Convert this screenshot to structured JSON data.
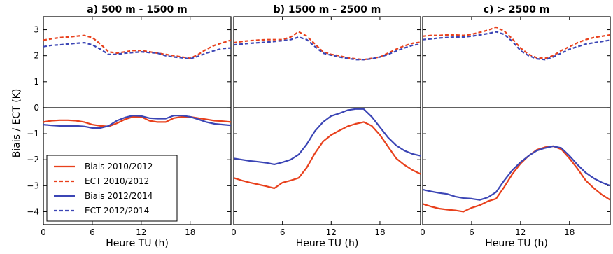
{
  "figure": {
    "ylabel": "Biais / ECT (K)",
    "xlabel": "Heure TU (h)"
  },
  "colors": {
    "red": "#e8401c",
    "blue": "#3b45b5",
    "zero_line": "#000000",
    "axes": "#000000"
  },
  "legend": {
    "location": "lower-left of panel a",
    "entries": [
      {
        "label": "Biais  2010/2012",
        "color": "#e8401c",
        "dashed": false
      },
      {
        "label": "ECT 2010/2012",
        "color": "#e8401c",
        "dashed": true
      },
      {
        "label": "Biais  2012/2014",
        "color": "#3b45b5",
        "dashed": false
      },
      {
        "label": "ECT 2012/2014",
        "color": "#3b45b5",
        "dashed": true
      }
    ]
  },
  "chart_data": [
    {
      "type": "line",
      "title": "a) 500 m - 1500 m",
      "xlabel": "Heure TU (h)",
      "ylabel": "Biais / ECT (K)",
      "xlim": [
        0,
        23
      ],
      "ylim": [
        -4.5,
        3.5
      ],
      "xticks": [
        "0",
        "6",
        "12",
        "18"
      ],
      "yticks": [
        "−4",
        "−3",
        "−2",
        "−1",
        "0",
        "1",
        "2",
        "3"
      ],
      "grid": false,
      "series": [
        {
          "name": "Biais  2010/2012",
          "color": "#e8401c",
          "dashed": false,
          "x": [
            0,
            1,
            2,
            3,
            4,
            5,
            6,
            7,
            8,
            9,
            10,
            11,
            12,
            13,
            14,
            15,
            16,
            17,
            18,
            19,
            20,
            21,
            22,
            23
          ],
          "y": [
            -0.55,
            -0.5,
            -0.48,
            -0.48,
            -0.5,
            -0.55,
            -0.65,
            -0.7,
            -0.72,
            -0.6,
            -0.45,
            -0.35,
            -0.35,
            -0.5,
            -0.55,
            -0.55,
            -0.4,
            -0.35,
            -0.35,
            -0.4,
            -0.45,
            -0.5,
            -0.52,
            -0.55
          ]
        },
        {
          "name": "ECT 2010/2012",
          "color": "#e8401c",
          "dashed": true,
          "x": [
            0,
            1,
            2,
            3,
            4,
            5,
            6,
            7,
            8,
            9,
            10,
            11,
            12,
            13,
            14,
            15,
            16,
            17,
            18,
            19,
            20,
            21,
            22,
            23
          ],
          "y": [
            2.6,
            2.65,
            2.7,
            2.72,
            2.75,
            2.78,
            2.7,
            2.45,
            2.15,
            2.1,
            2.15,
            2.2,
            2.2,
            2.15,
            2.1,
            2.05,
            2.0,
            1.95,
            1.9,
            2.05,
            2.25,
            2.4,
            2.5,
            2.6
          ]
        },
        {
          "name": "Biais  2012/2014",
          "color": "#3b45b5",
          "dashed": false,
          "x": [
            0,
            1,
            2,
            3,
            4,
            5,
            6,
            7,
            8,
            9,
            10,
            11,
            12,
            13,
            14,
            15,
            16,
            17,
            18,
            19,
            20,
            21,
            22,
            23
          ],
          "y": [
            -0.65,
            -0.68,
            -0.7,
            -0.7,
            -0.7,
            -0.72,
            -0.78,
            -0.78,
            -0.7,
            -0.5,
            -0.38,
            -0.3,
            -0.32,
            -0.4,
            -0.42,
            -0.42,
            -0.3,
            -0.3,
            -0.35,
            -0.45,
            -0.55,
            -0.62,
            -0.65,
            -0.68
          ]
        },
        {
          "name": "ECT 2012/2014",
          "color": "#3b45b5",
          "dashed": true,
          "x": [
            0,
            1,
            2,
            3,
            4,
            5,
            6,
            7,
            8,
            9,
            10,
            11,
            12,
            13,
            14,
            15,
            16,
            17,
            18,
            19,
            20,
            21,
            22,
            23
          ],
          "y": [
            2.35,
            2.4,
            2.42,
            2.45,
            2.48,
            2.5,
            2.42,
            2.25,
            2.05,
            2.05,
            2.1,
            2.12,
            2.15,
            2.12,
            2.1,
            2.0,
            1.95,
            1.92,
            1.88,
            1.98,
            2.1,
            2.2,
            2.28,
            2.3
          ]
        }
      ]
    },
    {
      "type": "line",
      "title": "b) 1500 m - 2500 m",
      "xlabel": "Heure TU (h)",
      "xlim": [
        0,
        23
      ],
      "ylim": [
        -4.5,
        3.5
      ],
      "xticks": [
        "0",
        "6",
        "12",
        "18"
      ],
      "grid": false,
      "series": [
        {
          "name": "Biais  2010/2012",
          "color": "#e8401c",
          "dashed": false,
          "x": [
            0,
            1,
            2,
            3,
            4,
            5,
            6,
            7,
            8,
            9,
            10,
            11,
            12,
            13,
            14,
            15,
            16,
            17,
            18,
            19,
            20,
            21,
            22,
            23
          ],
          "y": [
            -2.7,
            -2.8,
            -2.88,
            -2.95,
            -3.02,
            -3.1,
            -2.88,
            -2.8,
            -2.7,
            -2.3,
            -1.75,
            -1.3,
            -1.05,
            -0.88,
            -0.72,
            -0.62,
            -0.55,
            -0.7,
            -1.05,
            -1.5,
            -1.95,
            -2.2,
            -2.4,
            -2.55
          ]
        },
        {
          "name": "ECT 2010/2012",
          "color": "#e8401c",
          "dashed": true,
          "x": [
            0,
            1,
            2,
            3,
            4,
            5,
            6,
            7,
            8,
            9,
            10,
            11,
            12,
            13,
            14,
            15,
            16,
            17,
            18,
            19,
            20,
            21,
            22,
            23
          ],
          "y": [
            2.5,
            2.55,
            2.58,
            2.6,
            2.62,
            2.62,
            2.62,
            2.72,
            2.92,
            2.75,
            2.45,
            2.15,
            2.05,
            2.0,
            1.92,
            1.88,
            1.85,
            1.9,
            1.95,
            2.1,
            2.25,
            2.38,
            2.48,
            2.52
          ]
        },
        {
          "name": "Biais  2012/2014",
          "color": "#3b45b5",
          "dashed": false,
          "x": [
            0,
            1,
            2,
            3,
            4,
            5,
            6,
            7,
            8,
            9,
            10,
            11,
            12,
            13,
            14,
            15,
            16,
            17,
            18,
            19,
            20,
            21,
            22,
            23
          ],
          "y": [
            -1.95,
            -2.0,
            -2.05,
            -2.08,
            -2.12,
            -2.18,
            -2.1,
            -2.0,
            -1.8,
            -1.4,
            -0.9,
            -0.55,
            -0.32,
            -0.22,
            -0.1,
            -0.05,
            -0.05,
            -0.35,
            -0.75,
            -1.15,
            -1.45,
            -1.65,
            -1.78,
            -1.85
          ]
        },
        {
          "name": "ECT 2012/2014",
          "color": "#3b45b5",
          "dashed": true,
          "x": [
            0,
            1,
            2,
            3,
            4,
            5,
            6,
            7,
            8,
            9,
            10,
            11,
            12,
            13,
            14,
            15,
            16,
            17,
            18,
            19,
            20,
            21,
            22,
            23
          ],
          "y": [
            2.42,
            2.45,
            2.48,
            2.5,
            2.52,
            2.55,
            2.58,
            2.62,
            2.72,
            2.62,
            2.35,
            2.1,
            2.02,
            1.95,
            1.9,
            1.85,
            1.85,
            1.88,
            1.95,
            2.05,
            2.18,
            2.3,
            2.4,
            2.45
          ]
        }
      ]
    },
    {
      "type": "line",
      "title": "c) > 2500 m",
      "xlabel": "Heure TU (h)",
      "xlim": [
        0,
        23
      ],
      "ylim": [
        -4.5,
        3.5
      ],
      "xticks": [
        "0",
        "6",
        "12",
        "18"
      ],
      "grid": false,
      "series": [
        {
          "name": "Biais  2010/2012",
          "color": "#e8401c",
          "dashed": false,
          "x": [
            0,
            1,
            2,
            3,
            4,
            5,
            6,
            7,
            8,
            9,
            10,
            11,
            12,
            13,
            14,
            15,
            16,
            17,
            18,
            19,
            20,
            21,
            22,
            23
          ],
          "y": [
            -3.7,
            -3.8,
            -3.88,
            -3.92,
            -3.95,
            -4.0,
            -3.85,
            -3.75,
            -3.6,
            -3.5,
            -3.05,
            -2.55,
            -2.15,
            -1.85,
            -1.62,
            -1.52,
            -1.48,
            -1.6,
            -1.95,
            -2.35,
            -2.8,
            -3.1,
            -3.35,
            -3.55
          ]
        },
        {
          "name": "ECT 2010/2012",
          "color": "#e8401c",
          "dashed": true,
          "x": [
            0,
            1,
            2,
            3,
            4,
            5,
            6,
            7,
            8,
            9,
            10,
            11,
            12,
            13,
            14,
            15,
            16,
            17,
            18,
            19,
            20,
            21,
            22,
            23
          ],
          "y": [
            2.75,
            2.78,
            2.78,
            2.8,
            2.8,
            2.78,
            2.82,
            2.9,
            2.98,
            3.1,
            2.95,
            2.65,
            2.3,
            2.05,
            1.92,
            1.9,
            2.0,
            2.2,
            2.35,
            2.5,
            2.62,
            2.7,
            2.75,
            2.8
          ]
        },
        {
          "name": "Biais  2012/2014",
          "color": "#3b45b5",
          "dashed": false,
          "x": [
            0,
            1,
            2,
            3,
            4,
            5,
            6,
            7,
            8,
            9,
            10,
            11,
            12,
            13,
            14,
            15,
            16,
            17,
            18,
            19,
            20,
            21,
            22,
            23
          ],
          "y": [
            -3.15,
            -3.22,
            -3.28,
            -3.32,
            -3.42,
            -3.48,
            -3.5,
            -3.55,
            -3.45,
            -3.25,
            -2.8,
            -2.4,
            -2.1,
            -1.85,
            -1.65,
            -1.55,
            -1.48,
            -1.55,
            -1.85,
            -2.2,
            -2.5,
            -2.72,
            -2.88,
            -3.0
          ]
        },
        {
          "name": "ECT 2012/2014",
          "color": "#3b45b5",
          "dashed": true,
          "x": [
            0,
            1,
            2,
            3,
            4,
            5,
            6,
            7,
            8,
            9,
            10,
            11,
            12,
            13,
            14,
            15,
            16,
            17,
            18,
            19,
            20,
            21,
            22,
            23
          ],
          "y": [
            2.62,
            2.65,
            2.68,
            2.7,
            2.72,
            2.72,
            2.75,
            2.8,
            2.85,
            2.92,
            2.82,
            2.55,
            2.2,
            2.0,
            1.88,
            1.85,
            1.95,
            2.1,
            2.25,
            2.35,
            2.45,
            2.5,
            2.55,
            2.6
          ]
        }
      ]
    }
  ]
}
